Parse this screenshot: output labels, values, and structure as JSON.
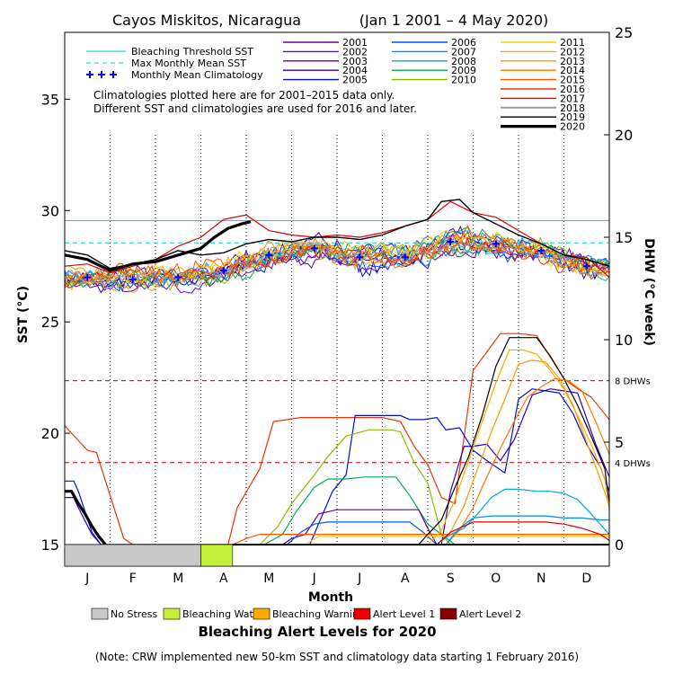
{
  "chart_data": {
    "type": "line",
    "title": "Cayos Miskitos, Nicaragua",
    "period": "(Jan 1 2001 – 4 May 2020)",
    "left_axis": {
      "label": "SST (°C)",
      "range": [
        15,
        38
      ],
      "ticks": [
        15,
        20,
        25,
        30,
        35
      ]
    },
    "right_axis": {
      "label": "DHW (°C week)",
      "range": [
        0,
        25
      ],
      "ticks": [
        0,
        5,
        10,
        15,
        20,
        25
      ]
    },
    "x_axis": {
      "label": "Month",
      "categories": [
        "J",
        "F",
        "M",
        "A",
        "M",
        "J",
        "J",
        "A",
        "S",
        "O",
        "N",
        "D"
      ]
    },
    "reference_lines": [
      {
        "name": "Bleaching Threshold SST",
        "sst": 29.55,
        "color": "#00cccc"
      },
      {
        "name": "Max Monthly Mean SST",
        "sst": 28.55,
        "color": "#00cccc",
        "dashed": true
      },
      {
        "name": "8 DHWs",
        "dhw": 8,
        "color": "#cc0000",
        "dashed": true
      },
      {
        "name": "4 DHWs",
        "dhw": 4,
        "color": "#cc0000",
        "dashed": true
      }
    ],
    "ref_labels": {
      "dhw8": "8 DHWs",
      "dhw4": "4 DHWs"
    },
    "climatology": {
      "name": "Monthly Mean Climatology",
      "color": "#0000ff",
      "months": [
        0.5,
        1.5,
        2.5,
        3.5,
        4.5,
        5.5,
        6.5,
        7.5,
        8.5,
        9.5,
        10.5,
        11.5
      ],
      "sst": [
        27.0,
        26.9,
        27.0,
        27.3,
        28.0,
        28.3,
        27.9,
        27.9,
        28.6,
        28.5,
        28.2,
        27.5
      ]
    },
    "note_lines": [
      "Climatologies plotted here are for 2001–2015 data only.",
      "Different SST and climatologies are used for 2016 and later."
    ],
    "years": [
      {
        "name": "2001",
        "color": "#660099",
        "w": 1.2
      },
      {
        "name": "2002",
        "color": "#7a00cc",
        "w": 1.2
      },
      {
        "name": "2003",
        "color": "#5500aa",
        "w": 1.2
      },
      {
        "name": "2004",
        "color": "#3300bb",
        "w": 1.2
      },
      {
        "name": "2005",
        "color": "#0011cc",
        "w": 1.2
      },
      {
        "name": "2006",
        "color": "#0055ee",
        "w": 1.2
      },
      {
        "name": "2007",
        "color": "#0088ff",
        "w": 1.2
      },
      {
        "name": "2008",
        "color": "#00aadd",
        "w": 1.2
      },
      {
        "name": "2009",
        "color": "#00aa55",
        "w": 1.2
      },
      {
        "name": "2010",
        "color": "#88bb00",
        "w": 1.2
      },
      {
        "name": "2011",
        "color": "#ffcc00",
        "w": 1.2
      },
      {
        "name": "2012",
        "color": "#ffaa00",
        "w": 1.2
      },
      {
        "name": "2013",
        "color": "#ff9900",
        "w": 1.2
      },
      {
        "name": "2014",
        "color": "#ff7700",
        "w": 1.2
      },
      {
        "name": "2015",
        "color": "#ff5500",
        "w": 1.2
      },
      {
        "name": "2016",
        "color": "#ee3300",
        "w": 1.2
      },
      {
        "name": "2017",
        "color": "#dd0000",
        "w": 1.2
      },
      {
        "name": "2018",
        "color": "#999999",
        "w": 1.6
      },
      {
        "name": "2019",
        "color": "#000000",
        "w": 1.2
      },
      {
        "name": "2020",
        "color": "#000000",
        "w": 3.2
      }
    ],
    "sst_2020": {
      "months": [
        0,
        0.5,
        1,
        1.5,
        2,
        2.5,
        3,
        3.3,
        3.6,
        3.9,
        4.1
      ],
      "sst": [
        28.0,
        27.8,
        27.3,
        27.6,
        27.7,
        28.0,
        28.3,
        28.8,
        29.2,
        29.4,
        29.5
      ]
    },
    "sst_2019": {
      "months": [
        0,
        0.5,
        1,
        1.5,
        2,
        2.5,
        3,
        3.5,
        4,
        4.5,
        5,
        5.5,
        6,
        6.5,
        7,
        7.5,
        8,
        8.3,
        8.7,
        9,
        9.5,
        10,
        10.5,
        11,
        11.5,
        12
      ],
      "sst": [
        28.2,
        28.0,
        27.4,
        27.6,
        27.8,
        28.2,
        28.0,
        28.1,
        28.5,
        28.7,
        28.6,
        28.8,
        28.8,
        28.7,
        28.9,
        29.3,
        29.6,
        30.4,
        30.5,
        29.9,
        29.4,
        28.9,
        28.5,
        28.0,
        27.8,
        27.5
      ]
    },
    "sst_2017": {
      "months": [
        0,
        0.5,
        1,
        1.5,
        2,
        2.5,
        3,
        3.5,
        4,
        4.5,
        5,
        5.5,
        6,
        6.5,
        7,
        7.5,
        8,
        8.5,
        9,
        9.5,
        10,
        10.5,
        11,
        11.5,
        12
      ],
      "sst": [
        27.5,
        27.6,
        27.2,
        27.5,
        27.8,
        28.4,
        28.8,
        29.6,
        29.8,
        29.1,
        28.9,
        28.8,
        28.9,
        28.8,
        29.0,
        29.3,
        29.6,
        30.4,
        29.9,
        29.7,
        29.1,
        28.5,
        28.0,
        27.9,
        27.0
      ]
    },
    "dhw_series": [
      {
        "name": "2016",
        "color": "#ee3300",
        "months": [
          0,
          0.5,
          0.7,
          1.3,
          1.5
        ],
        "dhw": [
          5.8,
          4.6,
          4.5,
          0.3,
          0
        ]
      },
      {
        "name": "2016b",
        "color": "#ee3300",
        "months": [
          3.6,
          3.8,
          4.3,
          4.6,
          5.2,
          5.6,
          6.2,
          6.5,
          7.0,
          7.4,
          7.7,
          8.0,
          8.3,
          8.6,
          9.0,
          9.6,
          10.0,
          10.4,
          11.0,
          11.3,
          11.6,
          12
        ],
        "dhw": [
          0,
          1.8,
          3.7,
          6.0,
          6.2,
          6.2,
          6.2,
          6.2,
          6.2,
          6.0,
          4.8,
          3.9,
          2.3,
          2.0,
          8.5,
          10.3,
          10.3,
          10.2,
          8.1,
          7.6,
          7.2,
          6.1
        ]
      },
      {
        "name": "2005",
        "color": "#0011cc",
        "months": [
          0,
          0.2,
          0.3,
          0.6,
          0.8,
          5.4,
          5.9,
          6.2,
          6.4,
          7.0,
          7.4,
          7.6,
          7.9,
          8.2,
          8.4,
          8.7,
          9.0,
          9.3,
          9.7,
          10.0,
          10.3,
          10.6,
          10.9,
          11.2,
          11.5,
          11.8,
          12
        ],
        "dhw": [
          3.1,
          3.1,
          2.6,
          0.6,
          0,
          0,
          2.6,
          3.4,
          6.3,
          6.3,
          6.3,
          6.1,
          6.1,
          6.2,
          5.6,
          5.7,
          4.6,
          4.1,
          3.5,
          7.1,
          7.6,
          7.5,
          7.4,
          6.4,
          4.9,
          3.8,
          2.6
        ]
      },
      {
        "name": "2004",
        "color": "#3300bb",
        "months": [
          0,
          0.2,
          0.3,
          0.6,
          0.8,
          8.3,
          8.5,
          8.8,
          9.0,
          9.3,
          9.6,
          9.9,
          10.3,
          10.7,
          11.0,
          11.3,
          11.7,
          12
        ],
        "dhw": [
          2.3,
          2.3,
          1.8,
          0.5,
          0,
          0,
          2.6,
          4.8,
          4.8,
          4.9,
          4.1,
          5.1,
          7.3,
          7.6,
          7.5,
          7.4,
          4.9,
          3.3
        ]
      },
      {
        "name": "2010",
        "color": "#88bb00",
        "months": [
          4.3,
          4.7,
          5.0,
          5.5,
          5.8,
          6.2,
          6.7,
          7.2,
          7.4,
          7.7,
          8.0,
          8.3,
          8.5
        ],
        "dhw": [
          0,
          0.9,
          2.0,
          3.4,
          4.3,
          5.3,
          5.6,
          5.6,
          5.5,
          4.0,
          3.0,
          0.5,
          0
        ]
      },
      {
        "name": "2009",
        "color": "#00aa55",
        "months": [
          4.4,
          4.8,
          5.1,
          5.5,
          5.8,
          6.2,
          6.6,
          7.0,
          7.3,
          7.6,
          8.0,
          8.3,
          8.6
        ],
        "dhw": [
          0,
          0.5,
          1.6,
          2.8,
          3.2,
          3.2,
          3.3,
          3.3,
          3.3,
          2.4,
          1.0,
          0.5,
          0
        ]
      },
      {
        "name": "2001",
        "color": "#660099",
        "months": [
          4.8,
          5.0,
          5.3,
          5.6,
          6.0,
          6.5,
          7.0,
          7.5,
          7.8,
          8.0,
          8.2
        ],
        "dhw": [
          0,
          0.3,
          0.5,
          1.5,
          1.7,
          1.7,
          1.7,
          1.7,
          1.7,
          0.8,
          0
        ]
      },
      {
        "name": "2006",
        "color": "#0055ee",
        "months": [
          4.9,
          5.2,
          5.5,
          5.8,
          6.2,
          6.7,
          7.2,
          7.6,
          7.9,
          8.2
        ],
        "dhw": [
          0,
          0.6,
          1.0,
          1.1,
          1.1,
          1.1,
          1.1,
          1.1,
          0.6,
          0
        ]
      },
      {
        "name": "2015",
        "color": "#ff5500",
        "months": [
          3.7,
          4.0,
          4.3,
          4.6,
          5.0,
          5.5,
          6.0,
          6.5,
          7.0,
          7.5,
          8.0,
          8.5,
          9.0,
          9.5,
          10.0,
          10.5,
          11.0,
          11.5,
          12
        ],
        "dhw": [
          0,
          0.3,
          0.5,
          0.5,
          0.5,
          0.5,
          0.5,
          0.5,
          0.5,
          0.5,
          0.5,
          0.5,
          0.5,
          0.5,
          0.5,
          0.5,
          0.5,
          0.5,
          0.5
        ]
      },
      {
        "name": "2011",
        "color": "#ffcc00",
        "months": [
          5.3,
          5.6,
          6.0,
          6.5,
          7.0,
          7.5,
          8.0,
          8.5,
          9.0,
          9.5,
          10.0,
          10.5,
          11.0,
          11.5,
          12
        ],
        "dhw": [
          0,
          0.4,
          0.4,
          0.4,
          0.4,
          0.4,
          0.4,
          0.4,
          0.4,
          0.4,
          0.4,
          0.4,
          0.4,
          0.4,
          0.4
        ]
      },
      {
        "name": "2019",
        "color": "#000000",
        "months": [
          7.8,
          8.0,
          8.3,
          8.6,
          8.9,
          9.2,
          9.5,
          9.8,
          10.1,
          10.4,
          10.7,
          11.0,
          11.3,
          11.6,
          11.9,
          12
        ],
        "dhw": [
          0,
          0.5,
          1.2,
          2.8,
          4.3,
          6.3,
          8.7,
          10.1,
          10.1,
          10.1,
          9.2,
          8.1,
          6.8,
          5.3,
          3.7,
          2.0
        ]
      },
      {
        "name": "2012",
        "color": "#ffaa00",
        "months": [
          8.0,
          8.3,
          8.6,
          8.9,
          9.2,
          9.5,
          9.8,
          10.1,
          10.4,
          10.7,
          11.0,
          11.3,
          11.6,
          11.9,
          12
        ],
        "dhw": [
          0,
          0.7,
          2.2,
          4.1,
          6.0,
          7.9,
          9.5,
          9.5,
          9.3,
          8.5,
          7.6,
          6.3,
          4.9,
          3.2,
          1.7
        ]
      },
      {
        "name": "2013",
        "color": "#ff9900",
        "months": [
          8.2,
          8.5,
          8.8,
          9.1,
          9.4,
          9.7,
          10.0,
          10.3,
          10.6,
          10.9,
          11.2,
          11.5,
          11.8,
          12
        ],
        "dhw": [
          0,
          0.6,
          1.9,
          3.7,
          5.5,
          7.1,
          8.8,
          9.0,
          8.9,
          8.1,
          6.8,
          5.0,
          3.2,
          1.9
        ]
      },
      {
        "name": "2014",
        "color": "#ff7700",
        "months": [
          8.4,
          8.7,
          9.0,
          9.3,
          9.6,
          9.9,
          10.2,
          10.5,
          10.8,
          11.1,
          11.4,
          11.7,
          12
        ],
        "dhw": [
          0,
          0.7,
          1.8,
          3.3,
          4.7,
          6.0,
          7.2,
          7.7,
          8.1,
          8.0,
          7.5,
          6.0,
          4.4
        ]
      },
      {
        "name": "2008",
        "color": "#00aadd",
        "months": [
          8.2,
          8.5,
          8.8,
          9.1,
          9.4,
          9.7,
          10.0,
          10.4,
          10.7,
          11.0,
          11.3,
          11.6,
          12
        ],
        "dhw": [
          0,
          0.5,
          0.8,
          1.5,
          2.3,
          2.7,
          2.7,
          2.6,
          2.6,
          2.5,
          2.2,
          1.5,
          0.5
        ]
      },
      {
        "name": "2007",
        "color": "#0088ff",
        "months": [
          8.4,
          8.7,
          9.0,
          9.4,
          9.8,
          10.2,
          10.6,
          11.0,
          11.4,
          11.8,
          12
        ],
        "dhw": [
          0,
          0.8,
          1.3,
          1.4,
          1.4,
          1.4,
          1.4,
          1.3,
          1.3,
          1.2,
          1.2
        ]
      },
      {
        "name": "2017",
        "color": "#dd0000",
        "months": [
          8.2,
          8.5,
          9.0,
          9.4,
          9.8,
          10.2,
          10.6,
          11.0,
          11.4,
          11.8,
          12
        ],
        "dhw": [
          0,
          0.6,
          1.1,
          1.1,
          1.1,
          1.1,
          1.1,
          1.0,
          0.8,
          0.5,
          0.2
        ]
      },
      {
        "name": "2020",
        "color": "#000000",
        "months": [
          0,
          0.15,
          0.3,
          0.45,
          0.6,
          0.75,
          0.9
        ],
        "dhw": [
          2.6,
          2.6,
          2.0,
          1.5,
          0.9,
          0.4,
          0
        ]
      }
    ],
    "alert_bar": {
      "title": "Bleaching Alert Levels for 2020",
      "segments": [
        {
          "start": 0,
          "end": 3.0,
          "level": "No Stress",
          "color": "#c8c8c8"
        },
        {
          "start": 3.0,
          "end": 3.7,
          "level": "Bleaching Watch",
          "color": "#c4f03a"
        }
      ]
    },
    "alert_legend": [
      {
        "label": "No Stress",
        "color": "#c8c8c8"
      },
      {
        "label": "Bleaching Watch",
        "color": "#c4f03a"
      },
      {
        "label": "Bleaching Warning",
        "color": "#ffaa00"
      },
      {
        "label": "Alert Level 1",
        "color": "#ee0000"
      },
      {
        "label": "Alert Level 2",
        "color": "#880000"
      }
    ],
    "footnote": "(Note: CRW implemented new 50-km SST and climatology data starting 1 February 2016)"
  }
}
